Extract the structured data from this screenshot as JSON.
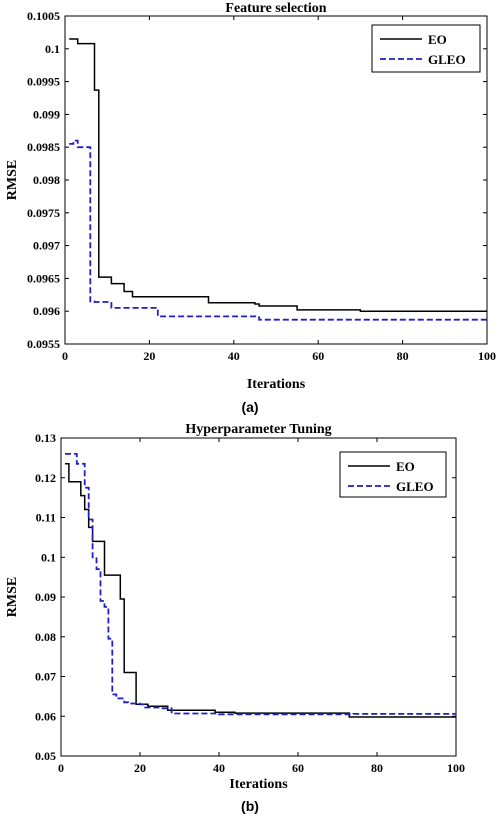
{
  "chart_data": [
    {
      "type": "line",
      "title": "Feature selection",
      "xlabel": "Iterations",
      "ylabel": "RMSE",
      "panel_label": "(a)",
      "xlim": [
        0,
        100
      ],
      "ylim": [
        0.0955,
        0.1005
      ],
      "xticks": [
        0,
        20,
        40,
        60,
        80,
        100
      ],
      "yticks": [
        0.0955,
        0.096,
        0.0965,
        0.097,
        0.0975,
        0.098,
        0.0985,
        0.099,
        0.0995,
        0.1,
        0.1005
      ],
      "ytick_labels": [
        "0.0955",
        "0.096",
        "0.0965",
        "0.097",
        "0.0975",
        "0.098",
        "0.0985",
        "0.099",
        "0.0995",
        "0.1",
        "0.1005"
      ],
      "legend_position": "top-right",
      "series": [
        {
          "name": "EO",
          "color": "#000000",
          "dash": "solid",
          "x": [
            1,
            3,
            3,
            7,
            7,
            8,
            8,
            9,
            9,
            11,
            11,
            12,
            12,
            14,
            14,
            16,
            16,
            34,
            34,
            45,
            45,
            46,
            46,
            55,
            55,
            70,
            70,
            100
          ],
          "y": [
            0.10015,
            0.10015,
            0.10008,
            0.10008,
            0.09937,
            0.09937,
            0.09652,
            0.09652,
            0.09652,
            0.09652,
            0.09642,
            0.09642,
            0.09642,
            0.09642,
            0.0963,
            0.0963,
            0.09622,
            0.09622,
            0.09613,
            0.09613,
            0.09611,
            0.09611,
            0.09608,
            0.09608,
            0.09602,
            0.09602,
            0.096,
            0.096
          ]
        },
        {
          "name": "GLEO",
          "color": "#1f1fcc",
          "dash": "dashed",
          "x": [
            1,
            2,
            2,
            3,
            3,
            6,
            6,
            7,
            7,
            11,
            11,
            22,
            22,
            46,
            46,
            100
          ],
          "y": [
            0.09855,
            0.09855,
            0.0986,
            0.0986,
            0.0985,
            0.0985,
            0.09615,
            0.09615,
            0.09614,
            0.09614,
            0.09605,
            0.09605,
            0.09592,
            0.09592,
            0.09587,
            0.09587
          ]
        }
      ]
    },
    {
      "type": "line",
      "title": "Hyperparameter Tuning",
      "xlabel": "Iterations",
      "ylabel": "RMSE",
      "panel_label": "(b)",
      "xlim": [
        0,
        100
      ],
      "ylim": [
        0.05,
        0.13
      ],
      "xticks": [
        0,
        20,
        40,
        60,
        80,
        100
      ],
      "yticks": [
        0.05,
        0.06,
        0.07,
        0.08,
        0.09,
        0.1,
        0.11,
        0.12,
        0.13
      ],
      "ytick_labels": [
        "0.05",
        "0.06",
        "0.07",
        "0.08",
        "0.09",
        "0.1",
        "0.11",
        "0.12",
        "0.13"
      ],
      "legend_position": "top-right",
      "series": [
        {
          "name": "EO",
          "color": "#000000",
          "dash": "solid",
          "x": [
            1,
            2,
            2,
            3,
            3,
            5,
            5,
            6,
            6,
            7,
            7,
            8,
            8,
            9,
            9,
            11,
            11,
            12,
            12,
            15,
            15,
            16,
            16,
            18,
            18,
            19,
            19,
            22,
            22,
            27,
            27,
            39,
            39,
            44,
            44,
            73,
            73,
            100
          ],
          "y": [
            0.1235,
            0.1235,
            0.119,
            0.119,
            0.119,
            0.119,
            0.1155,
            0.1155,
            0.112,
            0.112,
            0.1075,
            0.1075,
            0.104,
            0.104,
            0.104,
            0.104,
            0.0955,
            0.0955,
            0.0955,
            0.0955,
            0.0895,
            0.0895,
            0.071,
            0.071,
            0.071,
            0.071,
            0.063,
            0.063,
            0.0625,
            0.0625,
            0.0615,
            0.0615,
            0.061,
            0.061,
            0.0608,
            0.0608,
            0.0598,
            0.0598
          ]
        },
        {
          "name": "GLEO",
          "color": "#1f1fcc",
          "dash": "dashed",
          "x": [
            1,
            4,
            4,
            6,
            6,
            7,
            7,
            8,
            8,
            9,
            9,
            10,
            10,
            11,
            11,
            12,
            12,
            13,
            13,
            14,
            14,
            16,
            16,
            17,
            17,
            20,
            20,
            21,
            21,
            25,
            25,
            28,
            28,
            40,
            40,
            74,
            74,
            100
          ],
          "y": [
            0.126,
            0.126,
            0.1235,
            0.1235,
            0.1175,
            0.1175,
            0.1095,
            0.1095,
            0.1,
            0.1,
            0.097,
            0.097,
            0.089,
            0.089,
            0.0875,
            0.0875,
            0.0795,
            0.0795,
            0.0655,
            0.0655,
            0.0645,
            0.0645,
            0.0635,
            0.0635,
            0.0632,
            0.0632,
            0.063,
            0.063,
            0.0622,
            0.0622,
            0.062,
            0.062,
            0.0607,
            0.0607,
            0.0605,
            0.0605,
            0.0606,
            0.0606
          ]
        }
      ]
    }
  ]
}
